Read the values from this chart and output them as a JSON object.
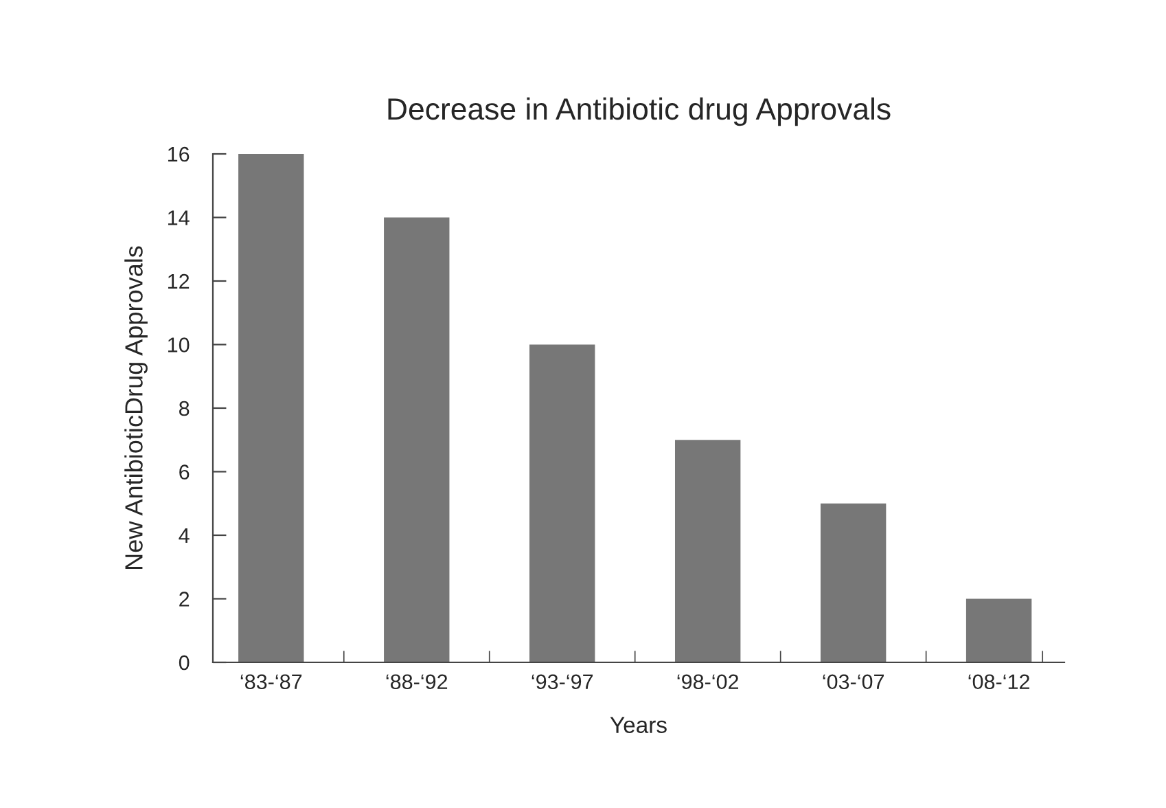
{
  "chart_data": {
    "type": "bar",
    "title": "Decrease in Antibiotic drug Approvals",
    "xlabel": "Years",
    "ylabel": "New AntibioticDrug Approvals",
    "categories": [
      "‘83-‘87",
      "‘88-‘92",
      "‘93-‘97",
      "‘98-‘02",
      "‘03-‘07",
      "‘08-‘12"
    ],
    "values": [
      16,
      14,
      10,
      7,
      5,
      2
    ],
    "color": "#777777",
    "ylim": [
      0,
      16
    ],
    "yticks": [
      0,
      2,
      4,
      6,
      8,
      10,
      12,
      14,
      16
    ],
    "grid": false
  }
}
